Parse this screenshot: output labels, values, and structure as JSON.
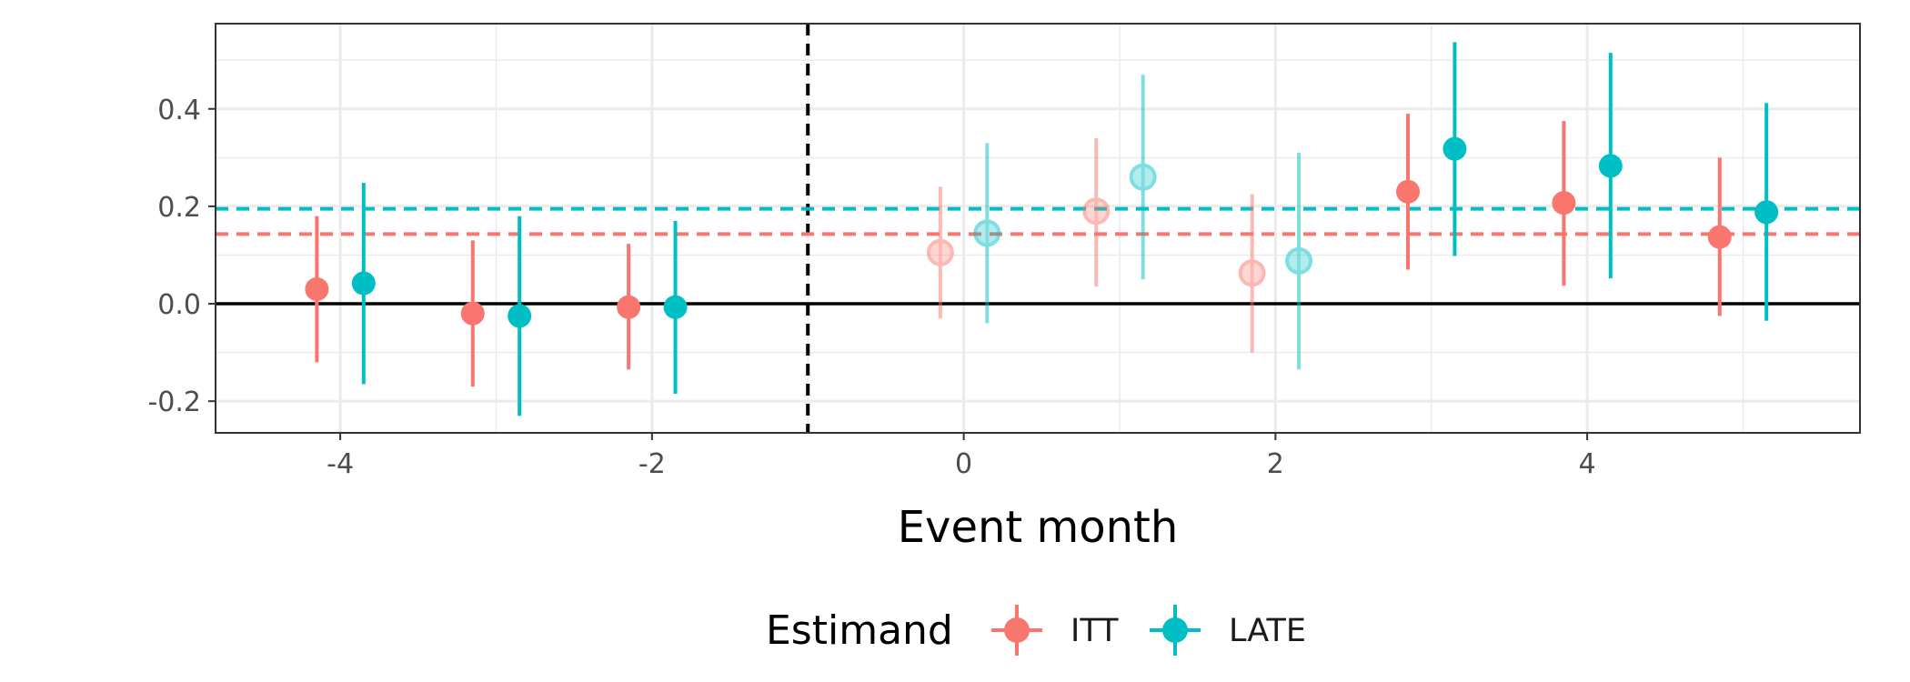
{
  "chart_data": {
    "type": "scatter",
    "title": "",
    "xlabel": "Event month",
    "ylabel": "",
    "xlim": [
      -4.8,
      5.75
    ],
    "ylim": [
      -0.265,
      0.575
    ],
    "x_ticks": [
      {
        "value": -4,
        "label": "-4"
      },
      {
        "value": -2,
        "label": "-2"
      },
      {
        "value": 0,
        "label": "0"
      },
      {
        "value": 2,
        "label": "2"
      },
      {
        "value": 4,
        "label": "4"
      }
    ],
    "y_ticks": [
      {
        "value": -0.2,
        "label": "-0.2"
      },
      {
        "value": 0.0,
        "label": "0.0"
      },
      {
        "value": 0.2,
        "label": "0.2"
      },
      {
        "value": 0.4,
        "label": "0.4"
      }
    ],
    "grid": true,
    "zero_line": 0,
    "event_line_x": -1,
    "legend": {
      "title": "Estimand",
      "position": "bottom"
    },
    "series": [
      {
        "name": "ITT",
        "color": "#F8766D",
        "dodge": -0.15,
        "average_line": 0.143,
        "points": [
          {
            "x": -4,
            "y": 0.03,
            "lo": -0.12,
            "hi": 0.18,
            "faded": false
          },
          {
            "x": -3,
            "y": -0.02,
            "lo": -0.17,
            "hi": 0.13,
            "faded": false
          },
          {
            "x": -2,
            "y": -0.007,
            "lo": -0.135,
            "hi": 0.123,
            "faded": false
          },
          {
            "x": 0,
            "y": 0.105,
            "lo": -0.03,
            "hi": 0.24,
            "faded": true
          },
          {
            "x": 1,
            "y": 0.19,
            "lo": 0.035,
            "hi": 0.34,
            "faded": true
          },
          {
            "x": 2,
            "y": 0.063,
            "lo": -0.1,
            "hi": 0.225,
            "faded": true
          },
          {
            "x": 3,
            "y": 0.23,
            "lo": 0.07,
            "hi": 0.39,
            "faded": false
          },
          {
            "x": 4,
            "y": 0.207,
            "lo": 0.037,
            "hi": 0.375,
            "faded": false
          },
          {
            "x": 5,
            "y": 0.137,
            "lo": -0.025,
            "hi": 0.3,
            "faded": false
          }
        ]
      },
      {
        "name": "LATE",
        "color": "#00BFC4",
        "dodge": 0.15,
        "average_line": 0.195,
        "points": [
          {
            "x": -4,
            "y": 0.042,
            "lo": -0.165,
            "hi": 0.248,
            "faded": false
          },
          {
            "x": -3,
            "y": -0.025,
            "lo": -0.23,
            "hi": 0.18,
            "faded": false
          },
          {
            "x": -2,
            "y": -0.007,
            "lo": -0.185,
            "hi": 0.17,
            "faded": false
          },
          {
            "x": 0,
            "y": 0.145,
            "lo": -0.04,
            "hi": 0.33,
            "faded": true
          },
          {
            "x": 1,
            "y": 0.26,
            "lo": 0.05,
            "hi": 0.47,
            "faded": true
          },
          {
            "x": 2,
            "y": 0.088,
            "lo": -0.135,
            "hi": 0.31,
            "faded": true
          },
          {
            "x": 3,
            "y": 0.318,
            "lo": 0.098,
            "hi": 0.537,
            "faded": false
          },
          {
            "x": 4,
            "y": 0.283,
            "lo": 0.052,
            "hi": 0.515,
            "faded": false
          },
          {
            "x": 5,
            "y": 0.188,
            "lo": -0.035,
            "hi": 0.412,
            "faded": false
          }
        ]
      }
    ]
  }
}
